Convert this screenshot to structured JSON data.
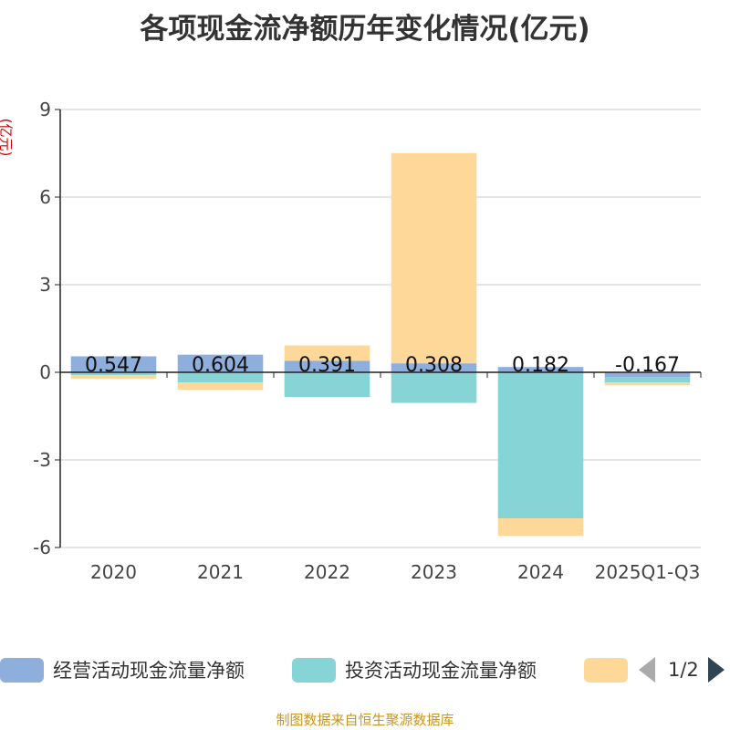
{
  "title": "各项现金流净额历年变化情况(亿元)",
  "unit_label": "(亿元)",
  "source": "制图数据来自恒生聚源数据库",
  "pager": {
    "text": "1/2"
  },
  "colors": {
    "operating": "#8eaedc",
    "investing": "#87d4d6",
    "financing": "#fdd898",
    "grid": "#cccccc",
    "axis": "#222222"
  },
  "chart_data": {
    "type": "bar",
    "stacked": true,
    "categories": [
      "2020",
      "2021",
      "2022",
      "2023",
      "2024",
      "2025Q1-Q3"
    ],
    "ylim": [
      -6,
      9
    ],
    "yticks": [
      -6,
      -3,
      0,
      3,
      6,
      9
    ],
    "grid": true,
    "legend_position": "bottom",
    "series": [
      {
        "name": "经营活动现金流量净额",
        "color": "#8eaedc",
        "values": [
          0.547,
          0.604,
          0.391,
          0.308,
          0.182,
          -0.167
        ]
      },
      {
        "name": "投资活动现金流量净额",
        "color": "#87d4d6",
        "values": [
          -0.1,
          -0.35,
          -0.85,
          -1.05,
          -5.0,
          -0.18
        ]
      },
      {
        "name": "",
        "color": "#fdd898",
        "values": [
          -0.12,
          -0.25,
          0.53,
          7.2,
          -0.6,
          -0.1
        ]
      }
    ],
    "data_labels": [
      "0.547",
      "0.604",
      "0.391",
      "0.308",
      "0.182",
      "-0.167"
    ]
  }
}
